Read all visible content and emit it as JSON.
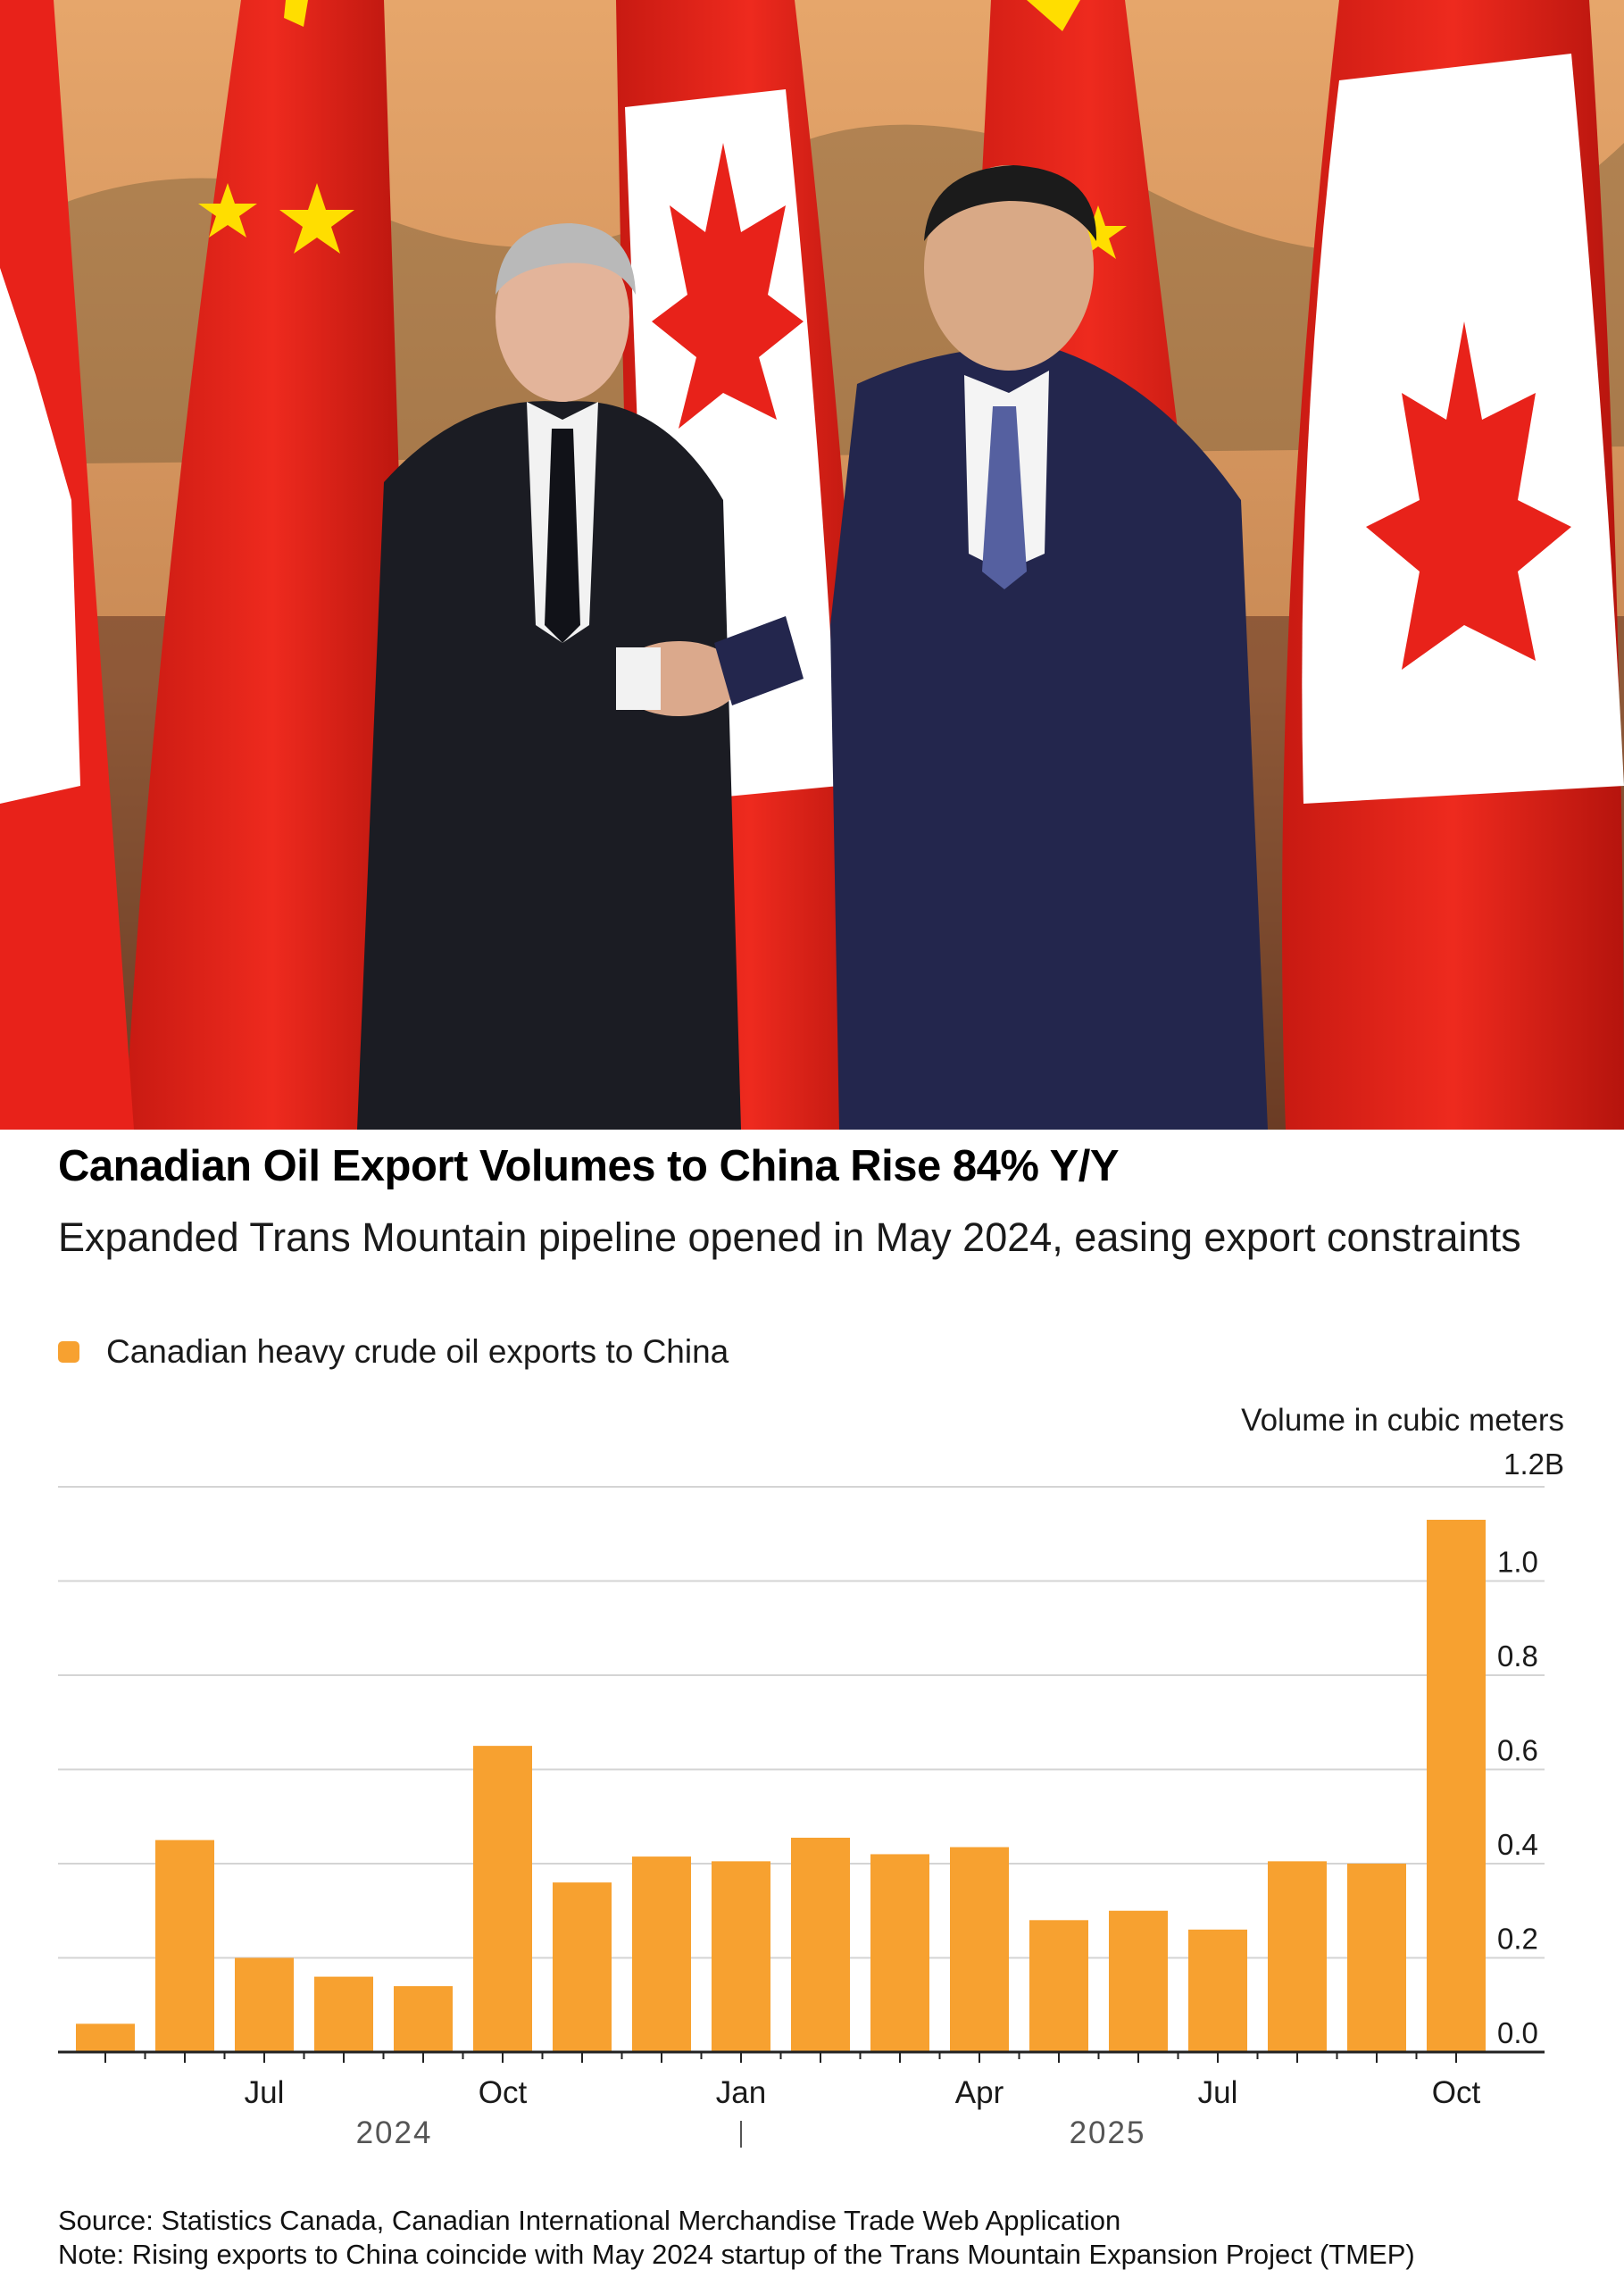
{
  "photo": {
    "description_icons": [
      "chinese-flag-icon",
      "canadian-flag-icon",
      "handshake-icon"
    ]
  },
  "chart_data": {
    "type": "bar",
    "title": "Canadian Oil Export Volumes to China Rise 84% Y/Y",
    "subtitle": "Expanded Trans Mountain pipeline opened in May 2024, easing export constraints",
    "legend": "Canadian heavy crude oil exports to China",
    "ylabel": "Volume in cubic meters",
    "ylim": [
      0,
      1.2
    ],
    "yticks": [
      "0.0",
      "0.2",
      "0.4",
      "0.6",
      "0.8",
      "1.0",
      "1.2B"
    ],
    "categories": [
      "2024-05",
      "2024-06",
      "2024-07",
      "2024-08",
      "2024-09",
      "2024-10",
      "2024-11",
      "2024-12",
      "2025-01",
      "2025-02",
      "2025-03",
      "2025-04",
      "2025-05",
      "2025-06",
      "2025-07",
      "2025-08",
      "2025-09",
      "2025-10"
    ],
    "values": [
      0.06,
      0.45,
      0.2,
      0.16,
      0.14,
      0.65,
      0.36,
      0.415,
      0.405,
      0.455,
      0.42,
      0.435,
      0.28,
      0.3,
      0.26,
      0.405,
      0.4,
      1.13
    ],
    "xtick_labels": [
      "Jul",
      "Oct",
      "Jan",
      "Apr",
      "Jul",
      "Oct"
    ],
    "year_labels": [
      "2024",
      "2025"
    ],
    "bar_color": "#f7a130",
    "grid": true
  },
  "footer": {
    "source": "Source: Statistics Canada, Canadian International Merchandise Trade Web Application",
    "note": "Note: Rising exports to China coincide with May 2024 startup of the Trans Mountain Expansion Project (TMEP)"
  }
}
